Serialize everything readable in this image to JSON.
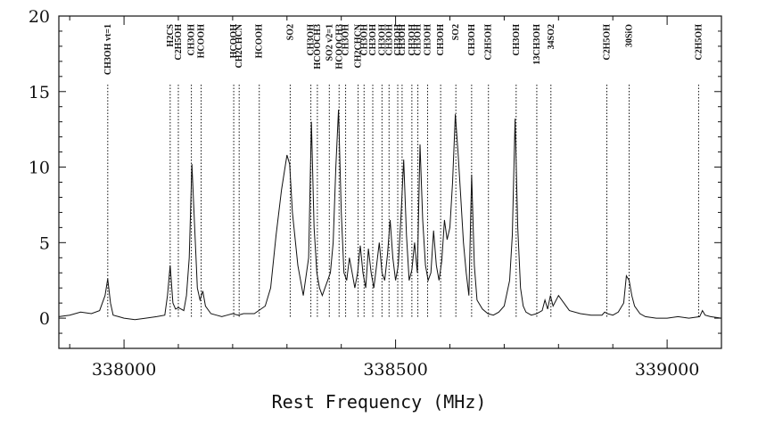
{
  "chart_data": {
    "type": "line",
    "title": "",
    "xlabel": "Rest Frequency (MHz)",
    "ylabel": "",
    "xlim": [
      337880,
      339100
    ],
    "ylim": [
      -2,
      20
    ],
    "xticks": [
      338000,
      338500,
      339000
    ],
    "xtick_labels": [
      "338000",
      "338500",
      "339000"
    ],
    "yticks": [
      0,
      5,
      10,
      15,
      20
    ],
    "ytick_labels": [
      "0",
      "5",
      "10",
      "15",
      "20"
    ],
    "grid": false,
    "series": [
      {
        "x": [
          337880,
          337900,
          337920,
          337940,
          337955,
          337965,
          337970,
          337975,
          337980,
          337990,
          338000,
          338020,
          338040,
          338060,
          338075,
          338080,
          338085,
          338090,
          338095,
          338100,
          338110,
          338115,
          338120,
          338125,
          338130,
          338135,
          338140,
          338145,
          338150,
          338160,
          338170,
          338180,
          338190,
          338200,
          338210,
          338220,
          338230,
          338240,
          338260,
          338270,
          338280,
          338290,
          338300,
          338305,
          338310,
          338320,
          338330,
          338340,
          338345,
          338350,
          338355,
          338360,
          338365,
          338370,
          338380,
          338385,
          338390,
          338395,
          338400,
          338405,
          338410,
          338415,
          338420,
          338425,
          338430,
          338435,
          338440,
          338445,
          338450,
          338455,
          338460,
          338465,
          338470,
          338475,
          338480,
          338485,
          338490,
          338495,
          338500,
          338505,
          338510,
          338515,
          338520,
          338525,
          338530,
          338535,
          338540,
          338545,
          338550,
          338555,
          338560,
          338565,
          338570,
          338575,
          338580,
          338585,
          338590,
          338595,
          338600,
          338605,
          338610,
          338615,
          338620,
          338625,
          338630,
          338635,
          338640,
          338645,
          338650,
          338660,
          338670,
          338680,
          338690,
          338700,
          338710,
          338715,
          338720,
          338725,
          338730,
          338735,
          338740,
          338750,
          338760,
          338770,
          338775,
          338780,
          338785,
          338790,
          338800,
          338820,
          338840,
          338860,
          338880,
          338885,
          338890,
          338900,
          338910,
          338920,
          338925,
          338930,
          338935,
          338940,
          338950,
          338960,
          338980,
          339000,
          339020,
          339040,
          339060,
          339065,
          339070,
          339080,
          339100
        ],
        "y": [
          0.1,
          0.2,
          0.4,
          0.3,
          0.5,
          1.5,
          2.6,
          1.0,
          0.2,
          0.1,
          0.0,
          -0.1,
          0.0,
          0.1,
          0.2,
          1.5,
          3.5,
          1.0,
          0.6,
          0.7,
          0.5,
          1.5,
          4.0,
          10.2,
          6.0,
          2.0,
          1.2,
          1.8,
          0.8,
          0.3,
          0.2,
          0.1,
          0.2,
          0.3,
          0.2,
          0.3,
          0.3,
          0.3,
          0.8,
          2.0,
          5.5,
          8.5,
          10.8,
          10.2,
          7.0,
          3.5,
          1.5,
          4.0,
          13.0,
          6.0,
          3.0,
          2.0,
          1.5,
          2.0,
          3.0,
          5.0,
          10.0,
          13.8,
          7.0,
          3.0,
          2.5,
          4.0,
          3.0,
          2.0,
          3.0,
          4.8,
          3.0,
          2.0,
          4.6,
          3.0,
          2.0,
          3.5,
          5.0,
          3.0,
          2.5,
          4.2,
          6.5,
          4.0,
          2.5,
          3.5,
          6.8,
          10.5,
          5.5,
          2.5,
          3.2,
          5.0,
          3.0,
          11.5,
          6.5,
          3.5,
          2.5,
          3.0,
          5.8,
          3.5,
          2.5,
          3.8,
          6.5,
          5.2,
          6.0,
          9.0,
          13.5,
          11.0,
          8.0,
          5.0,
          3.0,
          1.5,
          9.5,
          3.5,
          1.2,
          0.6,
          0.3,
          0.2,
          0.4,
          0.8,
          2.5,
          5.5,
          13.2,
          6.0,
          2.0,
          0.8,
          0.4,
          0.2,
          0.3,
          0.5,
          1.2,
          0.6,
          1.5,
          0.8,
          1.5,
          0.5,
          0.3,
          0.2,
          0.2,
          0.4,
          0.3,
          0.2,
          0.4,
          1.0,
          2.8,
          2.5,
          1.5,
          0.8,
          0.3,
          0.1,
          0.0,
          0.0,
          0.1,
          0.0,
          0.1,
          0.5,
          0.2,
          0.1,
          0.0
        ]
      }
    ],
    "line_labels": [
      {
        "x": 337970,
        "label": "CH3OH vt=1"
      },
      {
        "x": 338085,
        "label": "H2CS"
      },
      {
        "x": 338100,
        "label": "C2H5OH"
      },
      {
        "x": 338124,
        "label": "CH3OH"
      },
      {
        "x": 338142,
        "label": "HCOOH"
      },
      {
        "x": 338202,
        "label": "HCOOH"
      },
      {
        "x": 338212,
        "label": "CH2CHCN"
      },
      {
        "x": 338249,
        "label": "HCOOH"
      },
      {
        "x": 338306,
        "label": "SO2"
      },
      {
        "x": 338344,
        "label": "CH3OH"
      },
      {
        "x": 338356,
        "label": "HCOOCH3"
      },
      {
        "x": 338378,
        "label": "SO2 v2=1"
      },
      {
        "x": 338396,
        "label": "HCOOCH3"
      },
      {
        "x": 338408,
        "label": "CH3OH"
      },
      {
        "x": 338431,
        "label": "CH2CHCN"
      },
      {
        "x": 338442,
        "label": "CH3OH"
      },
      {
        "x": 338458,
        "label": "CH3OH"
      },
      {
        "x": 338475,
        "label": "CH3OH"
      },
      {
        "x": 338488,
        "label": "CH3OH"
      },
      {
        "x": 338504,
        "label": "CH3OH"
      },
      {
        "x": 338512,
        "label": "CH3OH"
      },
      {
        "x": 338530,
        "label": "CH3OH"
      },
      {
        "x": 338541,
        "label": "CH3OH"
      },
      {
        "x": 338559,
        "label": "CH3OH"
      },
      {
        "x": 338583,
        "label": "CH3OH"
      },
      {
        "x": 338611,
        "label": "SO2"
      },
      {
        "x": 338640,
        "label": "CH3OH"
      },
      {
        "x": 338671,
        "label": "C2H5OH"
      },
      {
        "x": 338722,
        "label": "CH3OH"
      },
      {
        "x": 338760,
        "label": "13CH3OH"
      },
      {
        "x": 338786,
        "label": "34SO2"
      },
      {
        "x": 338889,
        "label": "C2H5OH"
      },
      {
        "x": 338930,
        "label": "30SiO"
      },
      {
        "x": 339058,
        "label": "C2H5OH"
      }
    ]
  }
}
